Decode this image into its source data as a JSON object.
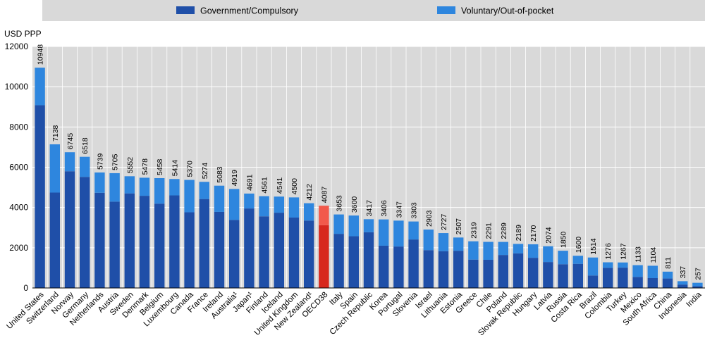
{
  "chart_data": {
    "type": "bar",
    "stacked": true,
    "ylabel": "USD PPP",
    "ylim": [
      0,
      12000
    ],
    "yticks": [
      0,
      2000,
      4000,
      6000,
      8000,
      10000,
      12000
    ],
    "grid": true,
    "legend_position": "top",
    "categories": [
      "United States",
      "Switzerland",
      "Norway",
      "Germany",
      "Netherlands",
      "Austria",
      "Sweden",
      "Denmark",
      "Belgium",
      "Luxembourg",
      "Canada",
      "France",
      "Ireland",
      "Australia¹",
      "Japan¹",
      "Finland",
      "Iceland",
      "United Kingdom",
      "New Zealand¹",
      "OECD38",
      "Italy",
      "Spain",
      "Czech Republic",
      "Korea",
      "Portugal",
      "Slovenia",
      "Israel",
      "Lithuania",
      "Estonia",
      "Greece",
      "Chile",
      "Poland",
      "Slovak Republic",
      "Hungary",
      "Latvia",
      "Russia",
      "Costa Rica",
      "Brazil",
      "Colombia",
      "Turkey",
      "Mexico",
      "South Africa",
      "China",
      "Indonesia",
      "India"
    ],
    "series": [
      {
        "name": "Government/Compulsory",
        "color": "#1f4fa8",
        "highlight_color": "#d7281e",
        "values": [
          9080,
          4740,
          5800,
          5520,
          4730,
          4290,
          4700,
          4580,
          4190,
          4600,
          3760,
          4420,
          3780,
          3380,
          3950,
          3560,
          3740,
          3500,
          3350,
          3120,
          2690,
          2570,
          2770,
          2100,
          2060,
          2410,
          1880,
          1830,
          1850,
          1410,
          1400,
          1640,
          1720,
          1500,
          1290,
          1180,
          1200,
          620,
          1000,
          1010,
          550,
          490,
          470,
          170,
          90
        ]
      },
      {
        "name": "Voluntary/Out-of-pocket",
        "color": "#2e86de",
        "highlight_color": "#f2594b",
        "values": [
          1868,
          2398,
          945,
          998,
          1009,
          1415,
          852,
          898,
          1268,
          814,
          1610,
          854,
          1303,
          1539,
          741,
          1001,
          801,
          1000,
          862,
          967,
          963,
          1030,
          647,
          1306,
          1287,
          893,
          1023,
          897,
          657,
          909,
          891,
          649,
          469,
          670,
          784,
          670,
          400,
          894,
          276,
          257,
          583,
          614,
          341,
          167,
          167
        ]
      }
    ],
    "totals": [
      10948,
      7138,
      6745,
      6518,
      5739,
      5705,
      5552,
      5478,
      5458,
      5414,
      5370,
      5274,
      5083,
      4919,
      4691,
      4561,
      4541,
      4500,
      4212,
      4087,
      3653,
      3600,
      3417,
      3406,
      3347,
      3303,
      2903,
      2727,
      2507,
      2319,
      2291,
      2289,
      2189,
      2170,
      2074,
      1850,
      1600,
      1514,
      1276,
      1267,
      1133,
      1104,
      811,
      337,
      257
    ],
    "highlight_category": "OECD38"
  }
}
